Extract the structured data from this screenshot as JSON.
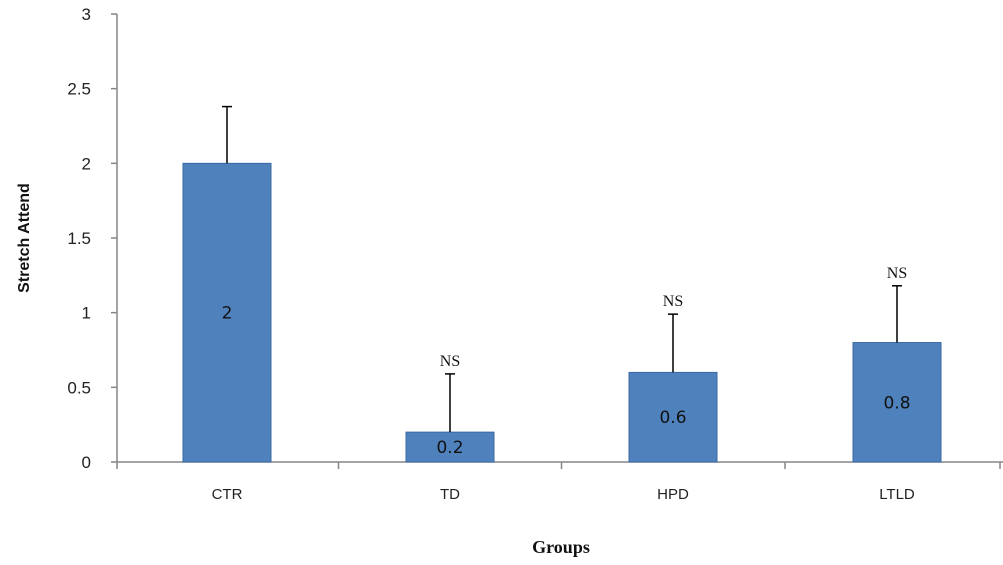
{
  "chart_data": {
    "type": "bar",
    "title": "",
    "xlabel": "Groups",
    "ylabel": "Stretch Attend",
    "categories": [
      "CTR",
      "TD",
      "HPD",
      "LTLD"
    ],
    "values": [
      2,
      0.2,
      0.6,
      0.8
    ],
    "value_labels": [
      "2",
      "0.2",
      "0.6",
      "0.8"
    ],
    "error_upper": [
      0.38,
      0.39,
      0.39,
      0.38
    ],
    "annotations": [
      "",
      "NS",
      "NS",
      "NS"
    ],
    "ylim": [
      0,
      3
    ],
    "yticks": [
      0,
      0.5,
      1,
      1.5,
      2,
      2.5,
      3
    ],
    "ytick_labels": [
      "0",
      "0.5",
      "1",
      "1.5",
      "2",
      "2.5",
      "3"
    ],
    "grid": false,
    "legend": "none",
    "bar_color": "#4f81bd",
    "bar_edge_color": "#3a6aa3",
    "axis_color": "#868686",
    "text_color": "#111111"
  }
}
